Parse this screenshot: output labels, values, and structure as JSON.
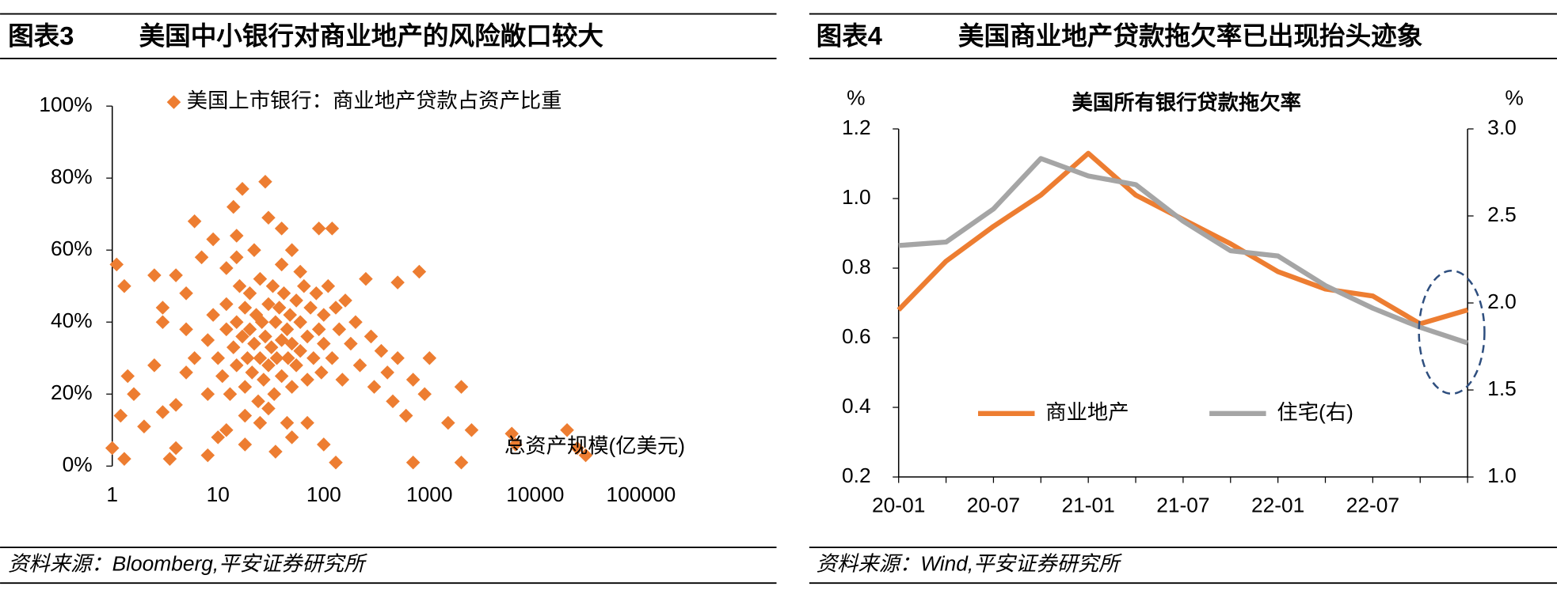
{
  "panels": [
    {
      "label": "图表3",
      "title": "美国中小银行对商业地产的风险敞口较大",
      "source": "资料来源：Bloomberg,平安证券研究所"
    },
    {
      "label": "图表4",
      "title": "美国商业地产贷款拖欠率已出现抬头迹象",
      "source": "资料来源：Wind,平安证券研究所"
    }
  ],
  "chart_data": [
    {
      "type": "scatter",
      "xlabel": "总资产规模(亿美元)",
      "xscale": "log",
      "xlim": [
        1,
        300000
      ],
      "xticks": [
        1,
        10,
        100,
        1000,
        10000,
        100000
      ],
      "ylim": [
        0,
        100
      ],
      "yticks": [
        {
          "value": 0,
          "label": "0%"
        },
        {
          "value": 20,
          "label": "20%"
        },
        {
          "value": 40,
          "label": "40%"
        },
        {
          "value": 60,
          "label": "60%"
        },
        {
          "value": 80,
          "label": "80%"
        },
        {
          "value": 100,
          "label": "100%"
        }
      ],
      "series": [
        {
          "name": "美国上市银行：商业地产贷款占资产比重",
          "color": "#ED7D31",
          "x": [
            1,
            1.1,
            1.3,
            1.2,
            1.3,
            1.4,
            1.6,
            2,
            2.5,
            2.5,
            3,
            3,
            3,
            3.5,
            4,
            4,
            4,
            5,
            5,
            6,
            7,
            8,
            9,
            10,
            12,
            14,
            15,
            17,
            28,
            30,
            40,
            50,
            90,
            120,
            130,
            500,
            800,
            700,
            1000,
            1500,
            2000,
            2000,
            2500,
            6000,
            6500,
            20000,
            25000,
            30000,
            8,
            9,
            10,
            11,
            12,
            12,
            13,
            14,
            15,
            15,
            16,
            17,
            18,
            18,
            19,
            20,
            20,
            21,
            22,
            23,
            24,
            25,
            25,
            26,
            27,
            28,
            30,
            30,
            32,
            33,
            34,
            35,
            36,
            38,
            40,
            40,
            42,
            45,
            46,
            48,
            50,
            50,
            55,
            55,
            60,
            60,
            65,
            70,
            70,
            75,
            80,
            85,
            90,
            95,
            100,
            100,
            110,
            120,
            130,
            140,
            150,
            160,
            180,
            200,
            220,
            250,
            280,
            300,
            350,
            400,
            450,
            500,
            600,
            700,
            900,
            12,
            18,
            25,
            35,
            50,
            70,
            100,
            15,
            22,
            40,
            60,
            8,
            6,
            5,
            18,
            30,
            45
          ],
          "values": [
            5,
            56,
            50,
            14,
            2,
            25,
            20,
            11,
            28,
            53,
            40,
            44,
            15,
            2,
            5,
            17,
            53,
            48,
            26,
            68,
            58,
            3,
            63,
            8,
            55,
            72,
            64,
            77,
            79,
            69,
            66,
            60,
            66,
            66,
            1,
            51,
            54,
            1,
            30,
            12,
            1,
            22,
            10,
            9,
            6,
            10,
            5,
            3,
            35,
            42,
            30,
            25,
            38,
            45,
            20,
            33,
            40,
            28,
            50,
            36,
            22,
            44,
            30,
            48,
            38,
            26,
            34,
            42,
            18,
            30,
            52,
            40,
            24,
            36,
            45,
            28,
            33,
            50,
            20,
            40,
            30,
            44,
            35,
            25,
            48,
            38,
            30,
            42,
            22,
            34,
            46,
            28,
            40,
            32,
            50,
            36,
            24,
            44,
            30,
            48,
            38,
            26,
            42,
            34,
            50,
            30,
            44,
            38,
            24,
            46,
            34,
            40,
            28,
            52,
            36,
            22,
            32,
            26,
            18,
            30,
            14,
            24,
            20,
            10,
            6,
            12,
            4,
            8,
            12,
            6,
            58,
            60,
            56,
            54,
            20,
            30,
            38,
            14,
            16,
            12
          ]
        }
      ]
    },
    {
      "type": "line",
      "title": "美国所有银行贷款拖欠率",
      "ylabel": "%",
      "y2label": "%",
      "categories": [
        "20-01",
        null,
        "20-07",
        null,
        "21-01",
        null,
        "21-07",
        null,
        "22-01",
        null,
        "22-07",
        null,
        null
      ],
      "ylim": [
        0.2,
        1.2
      ],
      "yticks": [
        {
          "value": 0.2,
          "label": "0.2"
        },
        {
          "value": 0.4,
          "label": "0.4"
        },
        {
          "value": 0.6,
          "label": "0.6"
        },
        {
          "value": 0.8,
          "label": "0.8"
        },
        {
          "value": 1.0,
          "label": "1.0"
        },
        {
          "value": 1.2,
          "label": "1.2"
        }
      ],
      "y2lim": [
        1,
        3
      ],
      "y2ticks": [
        {
          "value": 1,
          "label": "1.0"
        },
        {
          "value": 1.5,
          "label": "1.5"
        },
        {
          "value": 2,
          "label": "2.0"
        },
        {
          "value": 2.5,
          "label": "2.5"
        },
        {
          "value": 3,
          "label": "3.0"
        }
      ],
      "series": [
        {
          "name": "商业地产",
          "color": "#ED7D31",
          "values": [
            0.68,
            0.82,
            0.92,
            1.01,
            1.13,
            1.01,
            0.94,
            0.87,
            0.79,
            0.74,
            0.72,
            0.64,
            0.68
          ]
        },
        {
          "name": "住宅(右)",
          "color": "#A5A5A5",
          "axis": "y2",
          "values": [
            2.33,
            2.35,
            2.54,
            2.83,
            2.73,
            2.68,
            2.47,
            2.3,
            2.27,
            2.1,
            1.97,
            1.86,
            1.77
          ]
        }
      ]
    }
  ]
}
